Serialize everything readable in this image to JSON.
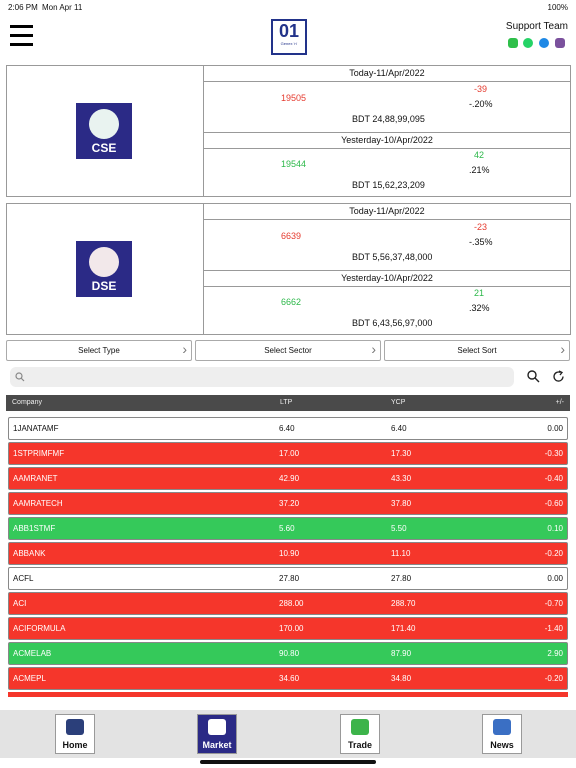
{
  "status_bar": {
    "time": "2:06 PM",
    "date": "Mon Apr 11",
    "battery": "100%"
  },
  "header": {
    "logo_number": "01",
    "logo_sub": "Genex 'n'",
    "support": "Support Team"
  },
  "markets": [
    {
      "name": "CSE",
      "today_label": "Today-11/Apr/2022",
      "today_index": "19505",
      "today_change": "-39",
      "today_pct": "-.20%",
      "today_turnover": "BDT 24,88,99,095",
      "yesterday_label": "Yesterday-10/Apr/2022",
      "yesterday_index": "19544",
      "yesterday_change": "42",
      "yesterday_pct": ".21%",
      "yesterday_turnover": "BDT 15,62,23,209"
    },
    {
      "name": "DSE",
      "today_label": "Today-11/Apr/2022",
      "today_index": "6639",
      "today_change": "-23",
      "today_pct": "-.35%",
      "today_turnover": "BDT 5,56,37,48,000",
      "yesterday_label": "Yesterday-10/Apr/2022",
      "yesterday_index": "6662",
      "yesterday_change": "21",
      "yesterday_pct": ".32%",
      "yesterday_turnover": "BDT 6,43,56,97,000"
    }
  ],
  "filters": [
    "Select Type",
    "Select Sector",
    "Select Sort"
  ],
  "table": {
    "columns": [
      "Company",
      "LTP",
      "YCP",
      "+/-"
    ],
    "rows": [
      [
        "1JANATAMF",
        "6.40",
        "6.40",
        "0.00"
      ],
      [
        "1STPRIMFMF",
        "17.00",
        "17.30",
        "-0.30"
      ],
      [
        "AAMRANET",
        "42.90",
        "43.30",
        "-0.40"
      ],
      [
        "AAMRATECH",
        "37.20",
        "37.80",
        "-0.60"
      ],
      [
        "ABB1STMF",
        "5.60",
        "5.50",
        "0.10"
      ],
      [
        "ABBANK",
        "10.90",
        "11.10",
        "-0.20"
      ],
      [
        "ACFL",
        "27.80",
        "27.80",
        "0.00"
      ],
      [
        "ACI",
        "288.00",
        "288.70",
        "-0.70"
      ],
      [
        "ACIFORMULA",
        "170.00",
        "171.40",
        "-1.40"
      ],
      [
        "ACMELAB",
        "90.80",
        "87.90",
        "2.90"
      ],
      [
        "ACMEPL",
        "34.60",
        "34.80",
        "-0.20"
      ]
    ]
  },
  "tabs": [
    "Home",
    "Market",
    "Trade",
    "News"
  ],
  "active_tab": 1
}
